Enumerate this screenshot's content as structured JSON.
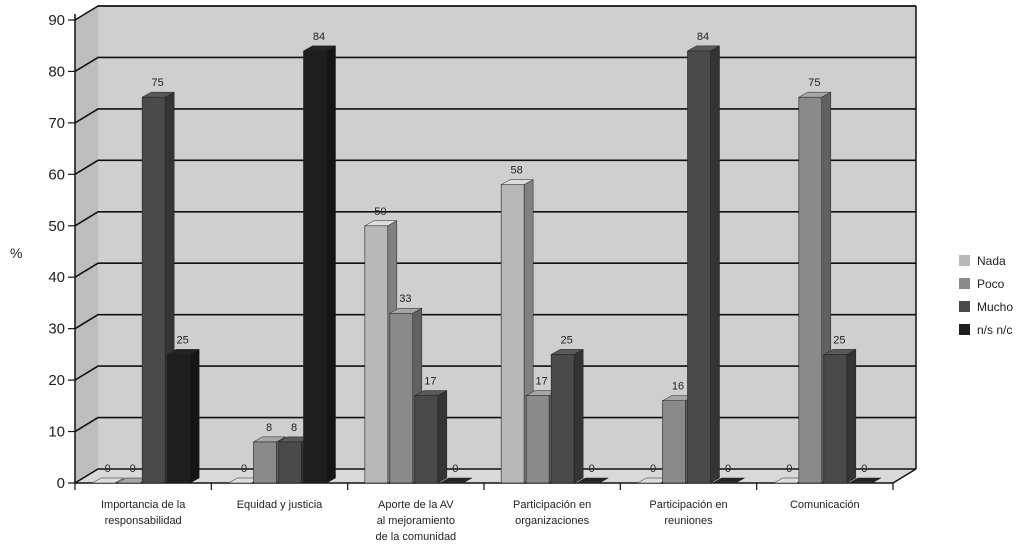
{
  "chart_data": {
    "type": "bar",
    "ylabel": "%",
    "xlabel": "",
    "title": "",
    "ylim": [
      0,
      90
    ],
    "yticks": [
      0,
      10,
      20,
      30,
      40,
      50,
      60,
      70,
      80,
      90
    ],
    "grid": true,
    "legend_position": "right",
    "categories": [
      [
        "Importancia de la",
        "responsabilidad"
      ],
      [
        "Equidad y justicia"
      ],
      [
        "Aporte de la AV",
        "al mejoramiento",
        "de la comunidad"
      ],
      [
        "Participación en",
        "organizaciones"
      ],
      [
        "Participación en",
        "reuniones"
      ],
      [
        "Comunicación"
      ]
    ],
    "series": [
      {
        "name": "Nada",
        "color": "#b8b8b8",
        "values": [
          0,
          0,
          50,
          58,
          0,
          0
        ],
        "labels": [
          "0",
          "0",
          "50",
          "58",
          "0",
          "0"
        ]
      },
      {
        "name": "Poco",
        "color": "#8a8a8a",
        "values": [
          0,
          8,
          33,
          17,
          16,
          75
        ],
        "labels": [
          "0",
          "8",
          "33",
          "17",
          "16",
          "75"
        ]
      },
      {
        "name": "Mucho",
        "color": "#4a4a4a",
        "values": [
          75,
          8,
          17,
          25,
          84,
          25
        ],
        "labels": [
          "75",
          "8",
          "17",
          "25",
          "84",
          "25"
        ]
      },
      {
        "name": "n/s n/c",
        "color": "#1e1e1e",
        "values": [
          25,
          84,
          0,
          0,
          0,
          0
        ],
        "labels": [
          "25",
          "84",
          "0",
          "0",
          "0",
          "0"
        ]
      }
    ],
    "plot_background": "#cfcfcf",
    "grid_color": "#111111"
  }
}
